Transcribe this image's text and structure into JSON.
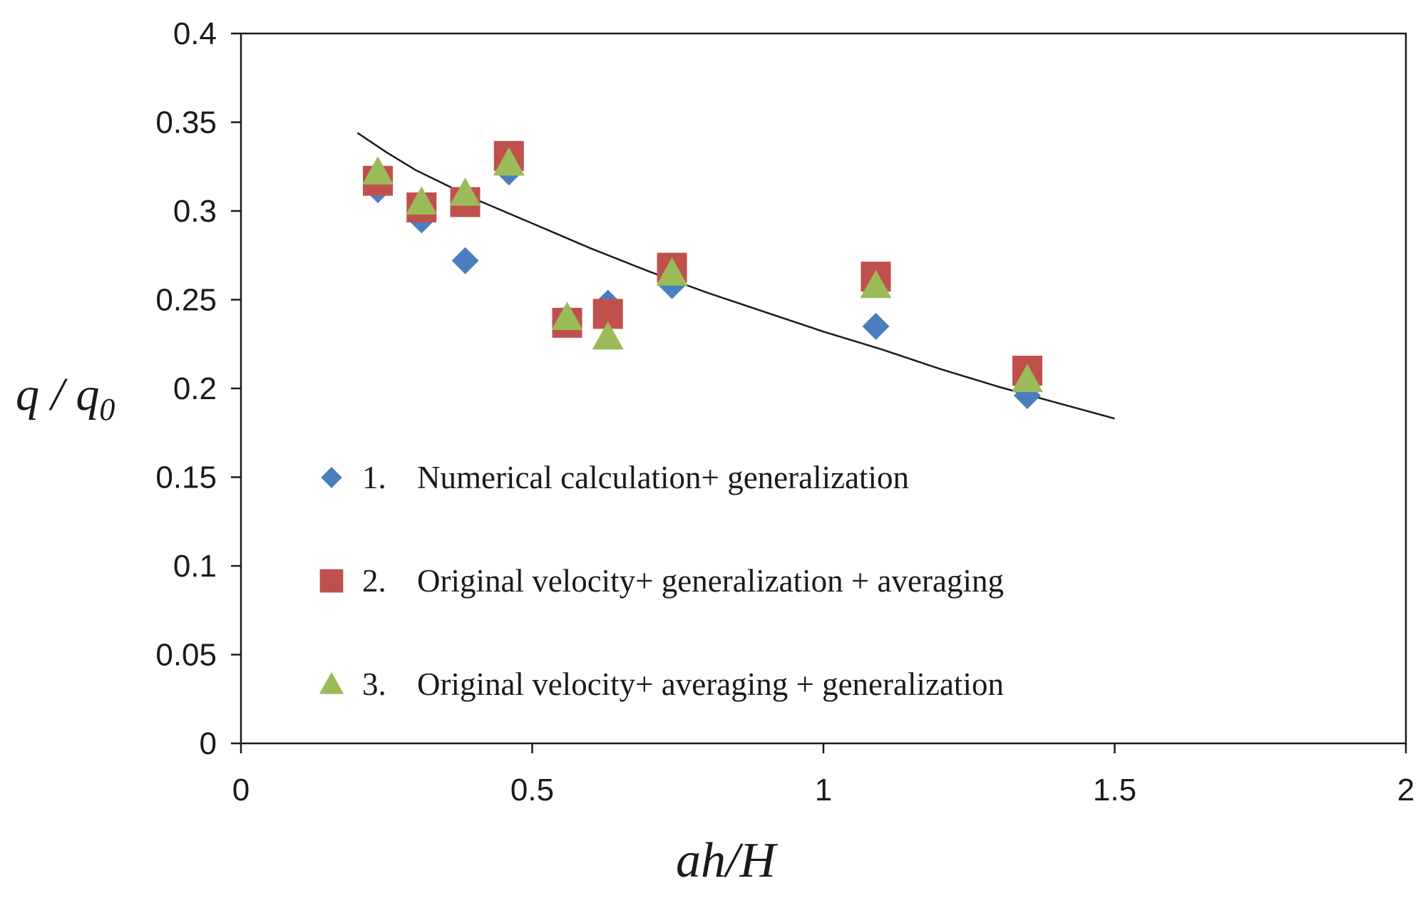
{
  "chart_data": {
    "type": "scatter",
    "title": "",
    "xlabel": "ah/H",
    "ylabel_main": "q / q",
    "ylabel_sub": "0",
    "xlim": [
      0,
      2
    ],
    "ylim": [
      0,
      0.4
    ],
    "xticks": [
      "0",
      "0.5",
      "1",
      "1.5",
      "2"
    ],
    "yticks": [
      "0",
      "0.05",
      "0.1",
      "0.15",
      "0.2",
      "0.25",
      "0.3",
      "0.35",
      "0.4"
    ],
    "xtick_values": [
      0,
      0.5,
      1,
      1.5,
      2
    ],
    "ytick_values": [
      0,
      0.05,
      0.1,
      0.15,
      0.2,
      0.25,
      0.3,
      0.35,
      0.4
    ],
    "grid": false,
    "legend_position": "lower-left inside plot",
    "series": [
      {
        "name": "Numerical calculation+ generalization",
        "number": "1.",
        "marker": "diamond",
        "color": "#4a7ebf",
        "x": [
          0.235,
          0.31,
          0.385,
          0.46,
          0.56,
          0.63,
          0.74,
          1.09,
          1.35
        ],
        "y": [
          0.312,
          0.295,
          0.272,
          0.322,
          0.24,
          0.248,
          0.258,
          0.235,
          0.196
        ]
      },
      {
        "name": "Original velocity+ generalization + averaging",
        "number": "2.",
        "marker": "square",
        "color": "#c0504d",
        "x": [
          0.235,
          0.31,
          0.385,
          0.46,
          0.56,
          0.63,
          0.74,
          1.09,
          1.35
        ],
        "y": [
          0.317,
          0.302,
          0.305,
          0.331,
          0.237,
          0.242,
          0.268,
          0.263,
          0.21
        ]
      },
      {
        "name": "Original velocity+ averaging + generalization",
        "number": "3.",
        "marker": "triangle",
        "color": "#9bbb59",
        "x": [
          0.235,
          0.31,
          0.385,
          0.46,
          0.56,
          0.63,
          0.74,
          1.09,
          1.35
        ],
        "y": [
          0.322,
          0.305,
          0.31,
          0.327,
          0.24,
          0.229,
          0.265,
          0.258,
          0.205
        ]
      }
    ],
    "fit_curve": {
      "name": "fit",
      "color": "#1a1a1a",
      "x": [
        0.2,
        0.25,
        0.3,
        0.35,
        0.4,
        0.5,
        0.6,
        0.7,
        0.8,
        0.9,
        1.0,
        1.1,
        1.2,
        1.3,
        1.4,
        1.5
      ],
      "y": [
        0.344,
        0.333,
        0.323,
        0.315,
        0.307,
        0.293,
        0.279,
        0.266,
        0.254,
        0.243,
        0.232,
        0.222,
        0.211,
        0.201,
        0.192,
        0.183
      ]
    }
  }
}
